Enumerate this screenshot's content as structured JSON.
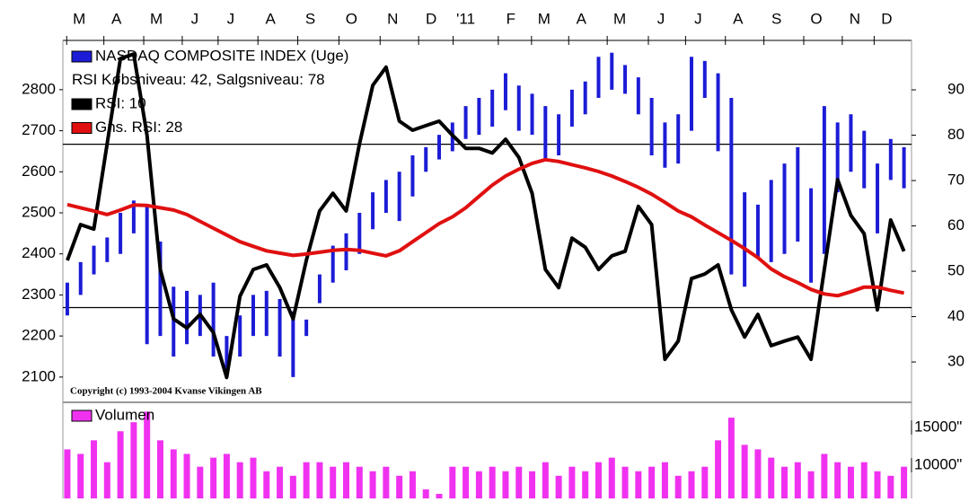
{
  "chart_data": [
    {
      "type": "stock",
      "xlim": [
        -0.2,
        63.5
      ],
      "xticks": [
        {
          "value": 0.9,
          "label": "M"
        },
        {
          "value": 3.7,
          "label": "A"
        },
        {
          "value": 6.7,
          "label": "M"
        },
        {
          "value": 9.6,
          "label": "J"
        },
        {
          "value": 12.3,
          "label": "J"
        },
        {
          "value": 15.3,
          "label": "A"
        },
        {
          "value": 18.3,
          "label": "S"
        },
        {
          "value": 21.4,
          "label": "O"
        },
        {
          "value": 24.5,
          "label": "N"
        },
        {
          "value": 27.4,
          "label": "D"
        },
        {
          "value": 30.0,
          "label": "'11"
        },
        {
          "value": 33.4,
          "label": "F"
        },
        {
          "value": 35.9,
          "label": "M"
        },
        {
          "value": 38.7,
          "label": "A"
        },
        {
          "value": 41.6,
          "label": "M"
        },
        {
          "value": 44.7,
          "label": "J"
        },
        {
          "value": 47.5,
          "label": "J"
        },
        {
          "value": 50.5,
          "label": "A"
        },
        {
          "value": 53.4,
          "label": "S"
        },
        {
          "value": 56.4,
          "label": "O"
        },
        {
          "value": 59.3,
          "label": "N"
        },
        {
          "value": 61.7,
          "label": "D"
        }
      ],
      "ylim": [
        2045,
        2920
      ],
      "yticks": [
        2100,
        2200,
        2300,
        2400,
        2500,
        2600,
        2700,
        2800
      ],
      "y2lim": [
        21.7,
        100.9
      ],
      "y2ticks": [
        30,
        40,
        50,
        60,
        70,
        80,
        90
      ],
      "levels_label": "RSI Købsniveau: 42, Salgsniveau: 78",
      "levels": [
        42,
        78
      ],
      "copyright": "Copyright (c) 1993-2004 Kvanse Vikingen AB",
      "series": [
        {
          "name": "NASDAQ COMPOSITE INDEX (Uge)",
          "color": "#1c1cd6",
          "high": [
            2330,
            2380,
            2420,
            2440,
            2500,
            2530,
            2520,
            2430,
            2320,
            2310,
            2300,
            2330,
            2200,
            2250,
            2300,
            2310,
            2290,
            2260,
            2240,
            2350,
            2420,
            2450,
            2500,
            2550,
            2580,
            2600,
            2640,
            2660,
            2690,
            2720,
            2760,
            2780,
            2800,
            2840,
            2810,
            2790,
            2760,
            2740,
            2800,
            2820,
            2880,
            2890,
            2860,
            2830,
            2780,
            2720,
            2740,
            2880,
            2870,
            2840,
            2780,
            2550,
            2520,
            2580,
            2620,
            2660,
            2560,
            2760,
            2720,
            2740,
            2700,
            2620,
            2680,
            2660
          ],
          "low": [
            2250,
            2300,
            2350,
            2380,
            2400,
            2450,
            2180,
            2200,
            2150,
            2180,
            2200,
            2150,
            2100,
            2150,
            2200,
            2200,
            2150,
            2100,
            2200,
            2280,
            2330,
            2360,
            2400,
            2460,
            2500,
            2480,
            2540,
            2600,
            2630,
            2650,
            2680,
            2690,
            2710,
            2750,
            2700,
            2690,
            2630,
            2640,
            2710,
            2740,
            2780,
            2800,
            2790,
            2740,
            2640,
            2610,
            2620,
            2700,
            2780,
            2650,
            2350,
            2320,
            2390,
            2380,
            2400,
            2430,
            2330,
            2400,
            2550,
            2600,
            2560,
            2450,
            2580,
            2560
          ]
        },
        {
          "name": "RSI: 10",
          "color": "#000000",
          "axis": "y2",
          "values": [
            52.4,
            60.3,
            59.3,
            78.1,
            96.9,
            97.9,
            80,
            50.4,
            39.5,
            37.5,
            40.5,
            36.5,
            26.6,
            44.5,
            50.4,
            51.4,
            46.4,
            39.5,
            52.4,
            63.3,
            67.2,
            63.3,
            78.1,
            91,
            95,
            83.1,
            81.1,
            82.1,
            83.1,
            80,
            77.1,
            77.1,
            76.1,
            79.1,
            75.1,
            67.2,
            50.4,
            46.4,
            57.3,
            55.3,
            50.4,
            53.4,
            54.4,
            64.3,
            60.3,
            30.6,
            34.6,
            48.4,
            49.4,
            51.4,
            41.5,
            35.5,
            40.5,
            33.6,
            34.6,
            35.5,
            30.6,
            50.4,
            70.2,
            62.3,
            58.3,
            41.5,
            61.3,
            54.4
          ]
        },
        {
          "name": "Gns. RSI: 28",
          "color": "#e01010",
          "axis": "y2",
          "values": [
            64.7,
            64,
            63.3,
            62.5,
            63.5,
            64.6,
            64.5,
            64,
            63.5,
            62.5,
            61,
            59.5,
            58,
            56.5,
            55.5,
            54.5,
            54,
            53.5,
            53.8,
            54.2,
            54.6,
            54.8,
            54.6,
            54,
            53.4,
            54.5,
            56.5,
            58.5,
            60.5,
            62,
            64,
            66.5,
            69,
            71,
            72.5,
            73.8,
            74.6,
            74.2,
            73.5,
            72.8,
            72,
            71,
            69.8,
            68.5,
            67,
            65.2,
            63.3,
            62,
            60.2,
            58.5,
            56.8,
            55,
            53,
            50.5,
            48.8,
            47.5,
            46,
            45,
            44.6,
            45.5,
            46.5,
            46.5,
            45.8,
            45.2
          ]
        }
      ]
    },
    {
      "type": "bar",
      "xlim": [
        -0.2,
        63.5
      ],
      "ylim": [
        5600,
        18100
      ],
      "yticks": [
        {
          "value": 15000,
          "label": "15000\""
        },
        {
          "value": 10000,
          "label": "10000\""
        }
      ],
      "series": [
        {
          "name": "Volumen",
          "color": "#f032f0",
          "values": [
            12100,
            11500,
            13300,
            10400,
            14500,
            15700,
            17100,
            13300,
            12100,
            11500,
            9800,
            11000,
            11500,
            10400,
            11000,
            9200,
            9800,
            8600,
            10400,
            10400,
            9800,
            10400,
            9800,
            9200,
            9800,
            8600,
            9200,
            6800,
            6200,
            9800,
            9800,
            9200,
            9800,
            9200,
            9800,
            9200,
            10400,
            8600,
            9800,
            9200,
            10400,
            11000,
            9800,
            9200,
            9800,
            10400,
            8600,
            9200,
            9800,
            13300,
            16300,
            12700,
            12100,
            11000,
            9800,
            10400,
            9200,
            11500,
            10400,
            9800,
            10400,
            9200,
            8600,
            9800
          ]
        }
      ]
    }
  ]
}
